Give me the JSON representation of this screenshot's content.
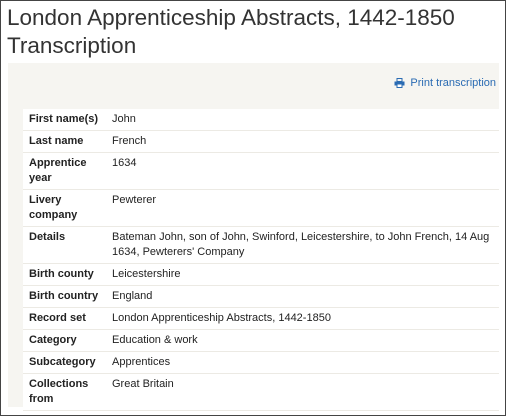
{
  "header": {
    "title_lines": [
      "London Apprenticeship Abstracts, 1442-1850",
      "Transcription"
    ]
  },
  "print_link": "Print transcription",
  "rows": [
    [
      "First name(s)",
      "John"
    ],
    [
      "Last name",
      "French"
    ],
    [
      "Apprentice year",
      "1634"
    ],
    [
      "Livery company",
      "Pewterer"
    ],
    [
      "Details",
      "Bateman John, son of John, Swinford, Leicestershire, to John French, 14 Aug 1634, Pewterers' Company"
    ],
    [
      "Birth county",
      "Leicestershire"
    ],
    [
      "Birth country",
      "England"
    ],
    [
      "Record set",
      "London Apprenticeship Abstracts, 1442-1850"
    ],
    [
      "Category",
      "Education & work"
    ],
    [
      "Subcategory",
      "Apprentices"
    ],
    [
      "Collections from",
      "Great Britain"
    ]
  ]
}
